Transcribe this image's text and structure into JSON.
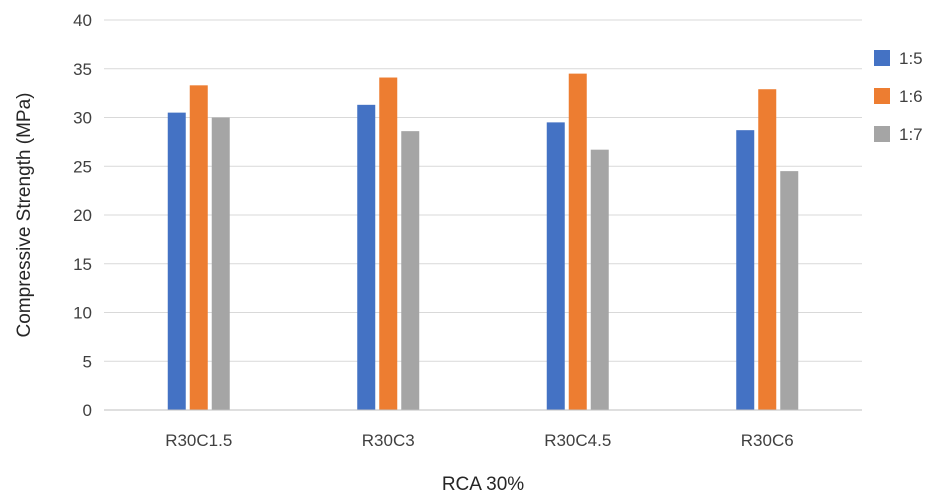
{
  "chart_data": {
    "type": "bar",
    "title": "",
    "xlabel": "RCA 30%",
    "ylabel": "Compressive Strength (MPa)",
    "categories": [
      "R30C1.5",
      "R30C3",
      "R30C4.5",
      "R30C6"
    ],
    "series": [
      {
        "name": "1:5",
        "color": "#4472c4",
        "values": [
          30.5,
          31.3,
          29.5,
          28.7
        ]
      },
      {
        "name": "1:6",
        "color": "#ed7d31",
        "values": [
          33.3,
          34.1,
          34.5,
          32.9
        ]
      },
      {
        "name": "1:7",
        "color": "#a5a5a5",
        "values": [
          30.0,
          28.6,
          26.7,
          24.5
        ]
      }
    ],
    "ylim": [
      0,
      40
    ],
    "yticks": [
      0,
      5,
      10,
      15,
      20,
      25,
      30,
      35,
      40
    ],
    "grid": true,
    "legend_position": "right"
  }
}
